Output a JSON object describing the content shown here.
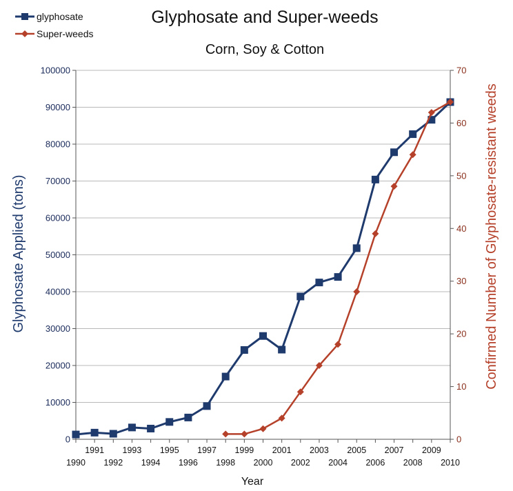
{
  "colors": {
    "glyphosate": "#1f3a6d",
    "superweeds": "#b5412a",
    "grid": "#b8b8b8",
    "axis": "#555555"
  },
  "chart_data": {
    "type": "line",
    "title": "Glyphosate and Super-weeds",
    "subtitle": "Corn, Soy & Cotton",
    "xlabel": "Year",
    "ylabel_left": "Glyphosate Applied (tons)",
    "ylabel_right": "Confirmed Number of Glyphosate-resistant weeds",
    "xlim": [
      1990,
      2010
    ],
    "ylim_left": [
      0,
      100000
    ],
    "ylim_right": [
      0,
      70
    ],
    "y_left_ticks": [
      "0",
      "10000",
      "20000",
      "30000",
      "40000",
      "50000",
      "60000",
      "70000",
      "80000",
      "90000",
      "100000"
    ],
    "y_right_ticks": [
      "0",
      "10",
      "20",
      "30",
      "40",
      "50",
      "60",
      "70"
    ],
    "x_ticks_upper": [
      "1991",
      "1993",
      "1995",
      "1997",
      "1999",
      "2001",
      "2003",
      "2005",
      "2007",
      "2009"
    ],
    "x_ticks_lower": [
      "1990",
      "1992",
      "1994",
      "1996",
      "1998",
      "2000",
      "2002",
      "2004",
      "2006",
      "2008",
      "2010"
    ],
    "grid": "horizontal",
    "legend_position": "top-left",
    "series": [
      {
        "name": "glyphosate",
        "axis": "left",
        "marker": "square",
        "x": [
          1990,
          1991,
          1992,
          1993,
          1994,
          1995,
          1996,
          1997,
          1998,
          1999,
          2000,
          2001,
          2002,
          2003,
          2004,
          2005,
          2006,
          2007,
          2008,
          2009,
          2010
        ],
        "y": [
          1300,
          1800,
          1500,
          3200,
          2900,
          4700,
          5900,
          9000,
          17000,
          24200,
          28000,
          24300,
          38700,
          42500,
          44000,
          51800,
          70400,
          77800,
          82700,
          86600,
          91400
        ]
      },
      {
        "name": "Super-weeds",
        "axis": "right",
        "marker": "diamond",
        "x": [
          1998,
          1999,
          2000,
          2001,
          2002,
          2003,
          2004,
          2005,
          2006,
          2007,
          2008,
          2009,
          2010
        ],
        "y": [
          1,
          1,
          2,
          4,
          9,
          14,
          18,
          28,
          39,
          48,
          54,
          62,
          64
        ]
      }
    ]
  }
}
